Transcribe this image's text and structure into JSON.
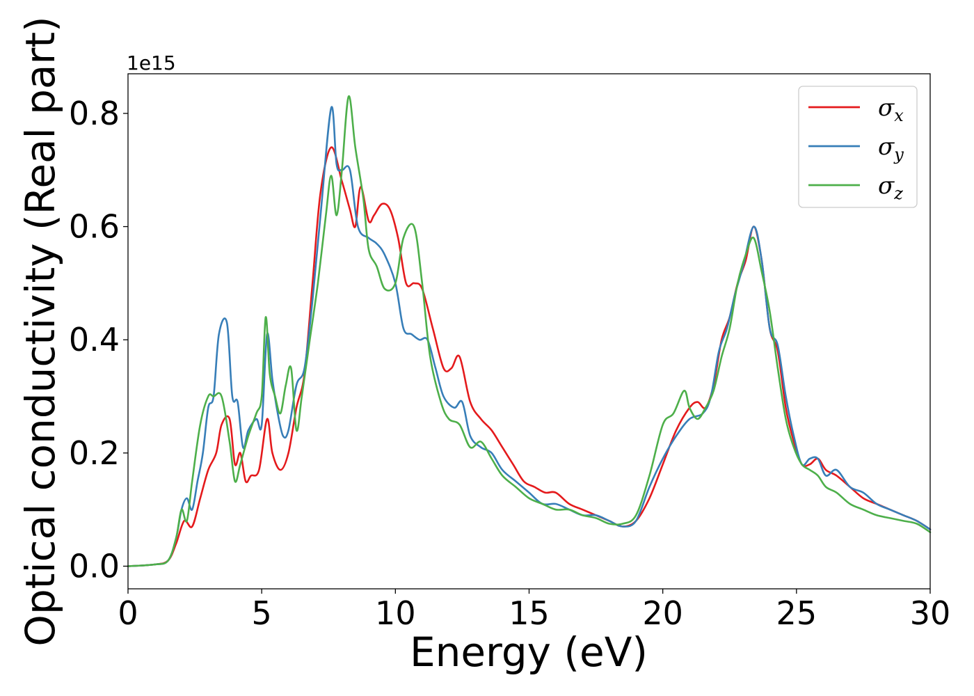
{
  "chart_data": {
    "type": "line",
    "xlabel": "Energy (eV)",
    "ylabel": "Optical conductivity (Real part)",
    "y_offset_text": "1e15",
    "xlim": [
      0,
      30
    ],
    "ylim": [
      -0.04,
      0.87
    ],
    "x_ticks": [
      0,
      5,
      10,
      15,
      20,
      25,
      30
    ],
    "x_tick_labels": [
      "0",
      "5",
      "10",
      "15",
      "20",
      "25",
      "30"
    ],
    "y_ticks": [
      0.0,
      0.2,
      0.4,
      0.6,
      0.8
    ],
    "y_tick_labels": [
      "0.0",
      "0.2",
      "0.4",
      "0.6",
      "0.8"
    ],
    "grid": false,
    "legend_position": "top-right",
    "series": [
      {
        "name": "σx",
        "legend_symbol": "σ",
        "legend_subscript": "x",
        "color": "#e41a1c",
        "x": [
          0,
          1,
          1.5,
          1.8,
          2.1,
          2.4,
          2.7,
          3.0,
          3.3,
          3.5,
          3.8,
          4.0,
          4.2,
          4.4,
          4.6,
          4.9,
          5.2,
          5.4,
          5.7,
          6.0,
          6.3,
          6.6,
          6.9,
          7.2,
          7.6,
          8.0,
          8.3,
          8.5,
          8.7,
          9.0,
          9.2,
          9.5,
          9.8,
          10.1,
          10.4,
          10.7,
          11.0,
          11.4,
          11.8,
          12.1,
          12.4,
          12.8,
          13.2,
          13.6,
          14.0,
          14.4,
          14.8,
          15.2,
          15.6,
          16.0,
          16.5,
          17.0,
          17.5,
          18.0,
          18.5,
          19.0,
          19.5,
          20.0,
          20.5,
          21.0,
          21.3,
          21.6,
          21.9,
          22.2,
          22.5,
          22.8,
          23.1,
          23.4,
          23.7,
          24.0,
          24.3,
          24.6,
          24.9,
          25.2,
          25.5,
          25.8,
          26.1,
          26.5,
          27.0,
          27.5,
          28.0,
          28.5,
          29.0,
          29.5,
          30.0
        ],
        "y": [
          0.0,
          0.003,
          0.01,
          0.04,
          0.08,
          0.07,
          0.12,
          0.17,
          0.2,
          0.25,
          0.26,
          0.18,
          0.2,
          0.15,
          0.16,
          0.17,
          0.26,
          0.2,
          0.17,
          0.2,
          0.28,
          0.34,
          0.5,
          0.66,
          0.74,
          0.68,
          0.63,
          0.6,
          0.67,
          0.61,
          0.62,
          0.64,
          0.63,
          0.58,
          0.5,
          0.5,
          0.49,
          0.42,
          0.35,
          0.35,
          0.37,
          0.29,
          0.26,
          0.24,
          0.21,
          0.18,
          0.15,
          0.14,
          0.13,
          0.13,
          0.11,
          0.1,
          0.09,
          0.08,
          0.07,
          0.08,
          0.12,
          0.18,
          0.24,
          0.28,
          0.29,
          0.28,
          0.32,
          0.4,
          0.44,
          0.5,
          0.54,
          0.6,
          0.54,
          0.42,
          0.38,
          0.28,
          0.22,
          0.18,
          0.18,
          0.19,
          0.17,
          0.16,
          0.14,
          0.12,
          0.11,
          0.1,
          0.09,
          0.08,
          0.065
        ]
      },
      {
        "name": "σy",
        "legend_symbol": "σ",
        "legend_subscript": "y",
        "color": "#377eb8",
        "x": [
          0,
          1,
          1.5,
          1.8,
          2.0,
          2.2,
          2.4,
          2.6,
          2.8,
          3.0,
          3.2,
          3.4,
          3.7,
          3.9,
          4.1,
          4.3,
          4.5,
          4.8,
          5.0,
          5.2,
          5.4,
          5.6,
          5.8,
          6.0,
          6.3,
          6.6,
          6.9,
          7.2,
          7.6,
          7.8,
          8.0,
          8.3,
          8.6,
          9.0,
          9.3,
          9.6,
          10.0,
          10.3,
          10.6,
          10.9,
          11.2,
          11.5,
          11.8,
          12.2,
          12.5,
          12.8,
          13.2,
          13.6,
          14.0,
          14.5,
          15.0,
          15.5,
          16.0,
          16.5,
          17.0,
          17.5,
          18.0,
          18.5,
          19.0,
          19.5,
          20.0,
          20.5,
          21.0,
          21.5,
          21.8,
          22.1,
          22.4,
          22.7,
          23.0,
          23.4,
          23.7,
          24.0,
          24.3,
          24.6,
          24.9,
          25.2,
          25.5,
          25.8,
          26.1,
          26.5,
          27.0,
          27.5,
          28.0,
          28.5,
          29.0,
          29.5,
          30.0
        ],
        "y": [
          0.0,
          0.003,
          0.01,
          0.05,
          0.1,
          0.12,
          0.1,
          0.15,
          0.2,
          0.28,
          0.3,
          0.41,
          0.43,
          0.3,
          0.29,
          0.21,
          0.24,
          0.26,
          0.25,
          0.41,
          0.33,
          0.27,
          0.23,
          0.24,
          0.32,
          0.35,
          0.47,
          0.62,
          0.81,
          0.71,
          0.7,
          0.7,
          0.6,
          0.58,
          0.57,
          0.55,
          0.5,
          0.42,
          0.41,
          0.4,
          0.4,
          0.35,
          0.3,
          0.28,
          0.29,
          0.23,
          0.21,
          0.2,
          0.17,
          0.15,
          0.13,
          0.11,
          0.11,
          0.1,
          0.09,
          0.09,
          0.08,
          0.07,
          0.08,
          0.14,
          0.19,
          0.23,
          0.26,
          0.27,
          0.3,
          0.38,
          0.42,
          0.48,
          0.53,
          0.6,
          0.54,
          0.42,
          0.39,
          0.3,
          0.23,
          0.18,
          0.19,
          0.19,
          0.16,
          0.17,
          0.14,
          0.13,
          0.11,
          0.1,
          0.09,
          0.08,
          0.065
        ]
      },
      {
        "name": "σz",
        "legend_symbol": "σ",
        "legend_subscript": "z",
        "color": "#4daf4a",
        "x": [
          0,
          1,
          1.5,
          1.8,
          2.0,
          2.2,
          2.4,
          2.7,
          3.0,
          3.2,
          3.5,
          3.8,
          4.0,
          4.2,
          4.5,
          4.8,
          5.0,
          5.15,
          5.3,
          5.5,
          5.7,
          5.9,
          6.1,
          6.3,
          6.5,
          6.8,
          7.1,
          7.4,
          7.6,
          7.8,
          8.0,
          8.25,
          8.5,
          8.8,
          9.0,
          9.3,
          9.6,
          10.0,
          10.3,
          10.7,
          11.0,
          11.3,
          11.7,
          12.0,
          12.4,
          12.8,
          13.2,
          13.6,
          14.0,
          14.5,
          15.0,
          15.5,
          16.0,
          16.5,
          17.0,
          17.5,
          18.0,
          18.5,
          19.0,
          19.5,
          20.0,
          20.4,
          20.8,
          21.0,
          21.3,
          21.6,
          21.9,
          22.2,
          22.5,
          22.8,
          23.1,
          23.4,
          23.7,
          24.0,
          24.3,
          24.6,
          24.9,
          25.2,
          25.5,
          25.8,
          26.1,
          26.5,
          27.0,
          27.5,
          28.0,
          28.5,
          29.0,
          29.5,
          30.0
        ],
        "y": [
          0.0,
          0.003,
          0.01,
          0.05,
          0.1,
          0.08,
          0.15,
          0.25,
          0.3,
          0.3,
          0.3,
          0.22,
          0.15,
          0.18,
          0.23,
          0.27,
          0.3,
          0.44,
          0.34,
          0.3,
          0.27,
          0.32,
          0.35,
          0.24,
          0.3,
          0.4,
          0.5,
          0.62,
          0.69,
          0.62,
          0.7,
          0.83,
          0.74,
          0.65,
          0.56,
          0.53,
          0.49,
          0.5,
          0.58,
          0.6,
          0.5,
          0.37,
          0.29,
          0.26,
          0.25,
          0.21,
          0.22,
          0.19,
          0.16,
          0.14,
          0.12,
          0.11,
          0.1,
          0.1,
          0.09,
          0.085,
          0.075,
          0.075,
          0.09,
          0.16,
          0.25,
          0.27,
          0.31,
          0.28,
          0.26,
          0.28,
          0.31,
          0.37,
          0.42,
          0.5,
          0.55,
          0.58,
          0.52,
          0.45,
          0.35,
          0.26,
          0.21,
          0.18,
          0.17,
          0.16,
          0.14,
          0.13,
          0.11,
          0.1,
          0.09,
          0.085,
          0.08,
          0.075,
          0.06
        ]
      }
    ]
  }
}
